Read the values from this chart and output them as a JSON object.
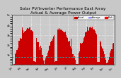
{
  "title": "Solar PV/Inverter Performance East Array\nActual & Average Power Output",
  "title_fontsize": 4.2,
  "bg_color": "#c8c8c8",
  "plot_bg_color": "#c8c8c8",
  "grid_color": "white",
  "bar_color": "#cc0000",
  "avg_line_color": "#00cccc",
  "legend_actual_color": "#cc0000",
  "legend_avg_color": "#0000ff",
  "legend_peak_color": "#ff0000",
  "ylim": [
    0,
    5000
  ],
  "ylabel_ticks": [
    "1k",
    "2k",
    "3k",
    "4k",
    "5k"
  ],
  "ylabel_vals": [
    1000,
    2000,
    3000,
    4000,
    5000
  ],
  "avg_line_y": 800,
  "n_bars": 120
}
